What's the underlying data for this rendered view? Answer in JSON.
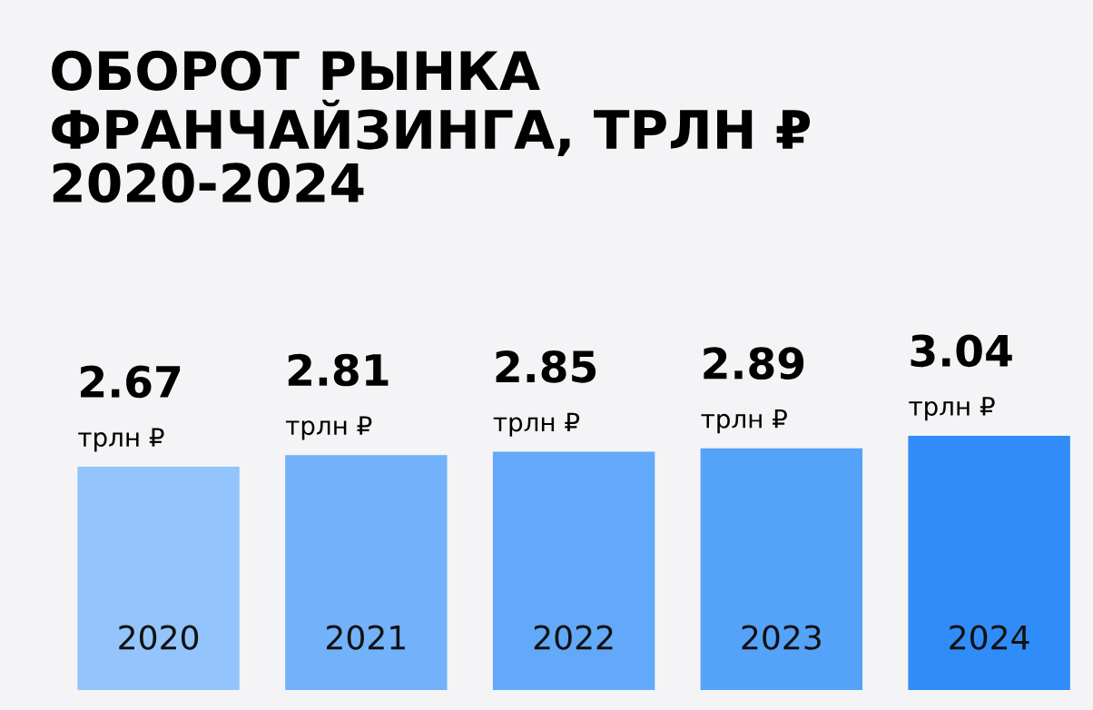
{
  "chart_data": {
    "type": "bar",
    "title": "ОБОРОТ РЫНКА\nФРАНЧАЙЗИНГА, ТРЛН ₽\n2020-2024",
    "categories": [
      "2020",
      "2021",
      "2022",
      "2023",
      "2024"
    ],
    "values": [
      2.67,
      2.81,
      2.85,
      2.89,
      3.04
    ],
    "colors": [
      "#93c4fb",
      "#72b2fa",
      "#62a9f9",
      "#55a2f9",
      "#2f8cf8"
    ],
    "value_labels": [
      "2.67\nтрлн ₽",
      "2.81\nтрлн ₽",
      "2.85\nтрлн ₽",
      "2.89\nтрлн ₽",
      "3.04\nтрлн ₽"
    ],
    "grid": false,
    "legend": false
  }
}
